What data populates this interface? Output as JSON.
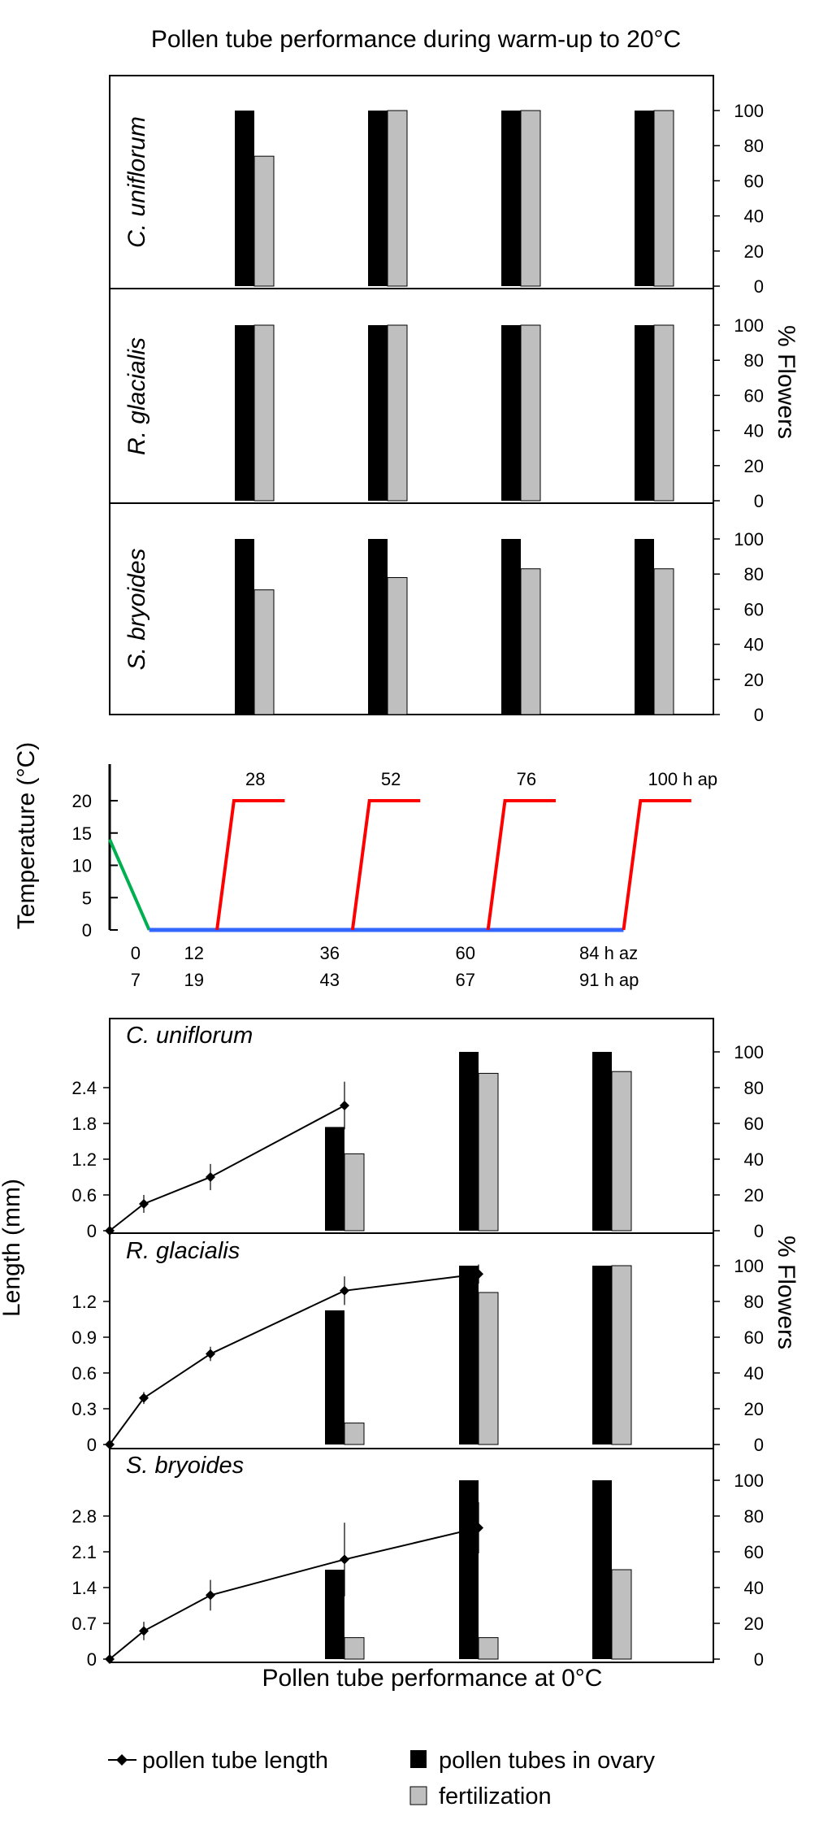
{
  "chart_data": {
    "title": "Pollen tube performance during warm-up to 20°C",
    "bottom_title": "Pollen tube performance at 0°C",
    "legend": {
      "line": "pollen tube length",
      "black": "pollen tubes in ovary",
      "grey": "fertilization"
    },
    "colors": {
      "black": "#000000",
      "grey": "#bfbfbf",
      "red": "#ff0000",
      "green": "#00b050",
      "blue": "#3366ff"
    },
    "warmup": {
      "type": "bar",
      "ylabel": "% Flowers",
      "yticks": [
        "0",
        "20",
        "40",
        "60",
        "80",
        "100"
      ],
      "ylim": [
        0,
        100
      ],
      "panels": [
        {
          "species": "C. uniflorum",
          "tubes": [
            100,
            100,
            100,
            100
          ],
          "fertilization": [
            74,
            100,
            100,
            100
          ]
        },
        {
          "species": "R. glacialis",
          "tubes": [
            100,
            100,
            100,
            100
          ],
          "fertilization": [
            100,
            100,
            100,
            100
          ]
        },
        {
          "species": "S. bryoides",
          "tubes": [
            100,
            100,
            100,
            100
          ],
          "fertilization": [
            71,
            78,
            83,
            83
          ]
        }
      ]
    },
    "temperature": {
      "type": "line",
      "ylabel": "Temperature (°C)",
      "yticks": [
        "0",
        "5",
        "10",
        "15",
        "20"
      ],
      "ylim": [
        0,
        25
      ],
      "xlim": [
        0,
        100
      ],
      "cooling": {
        "x": [
          0,
          7
        ],
        "y": [
          14,
          0
        ]
      },
      "baseline": {
        "x": [
          7,
          91
        ],
        "y": [
          0,
          0
        ]
      },
      "warmups": [
        {
          "start": 19,
          "top": 28,
          "end": 31,
          "label": "28"
        },
        {
          "start": 43,
          "top": 52,
          "end": 55,
          "label": "52"
        },
        {
          "start": 67,
          "top": 76,
          "end": 79,
          "label": "76"
        },
        {
          "start": 91,
          "top": 100,
          "end": 103,
          "label": "100 h ap"
        }
      ],
      "xticks_az": [
        "0",
        "12",
        "36",
        "60",
        "84 h az"
      ],
      "xticks_ap": [
        "7",
        "19",
        "43",
        "67",
        "91 h ap"
      ]
    },
    "cold": {
      "type": "bar+line",
      "ylabel_left": "Length (mm)",
      "ylabel_right": "% Flowers",
      "right_ticks": [
        "0",
        "20",
        "40",
        "60",
        "80",
        "100"
      ],
      "panels": [
        {
          "species": "C. uniflorum",
          "left_ticks": [
            "0",
            "0.6",
            "1.2",
            "1.8",
            "2.4"
          ],
          "lmax": 3.0,
          "length": [
            0,
            0.45,
            0.9,
            2.1
          ],
          "err": [
            0,
            0.15,
            0.22,
            0.4
          ],
          "tubes": [
            58,
            100,
            100
          ],
          "fertilization": [
            43,
            88,
            89
          ]
        },
        {
          "species": "R. glacialis",
          "left_ticks": [
            "0",
            "0.3",
            "0.6",
            "0.9",
            "1.2"
          ],
          "lmax": 1.5,
          "length": [
            0,
            0.39,
            0.76,
            1.29,
            1.43
          ],
          "err": [
            0,
            0.05,
            0.06,
            0.12,
            0.08
          ],
          "tubes": [
            75,
            100,
            100
          ],
          "fertilization": [
            12,
            85,
            100
          ]
        },
        {
          "species": "S. bryoides",
          "left_ticks": [
            "0",
            "0.7",
            "1.4",
            "2.1",
            "2.8"
          ],
          "lmax": 3.5,
          "length": [
            0,
            0.55,
            1.25,
            1.95,
            2.57
          ],
          "err": [
            0,
            0.18,
            0.3,
            0.72,
            0.5
          ],
          "tubes": [
            50,
            100,
            100
          ],
          "fertilization": [
            12,
            12,
            50
          ]
        }
      ]
    }
  }
}
